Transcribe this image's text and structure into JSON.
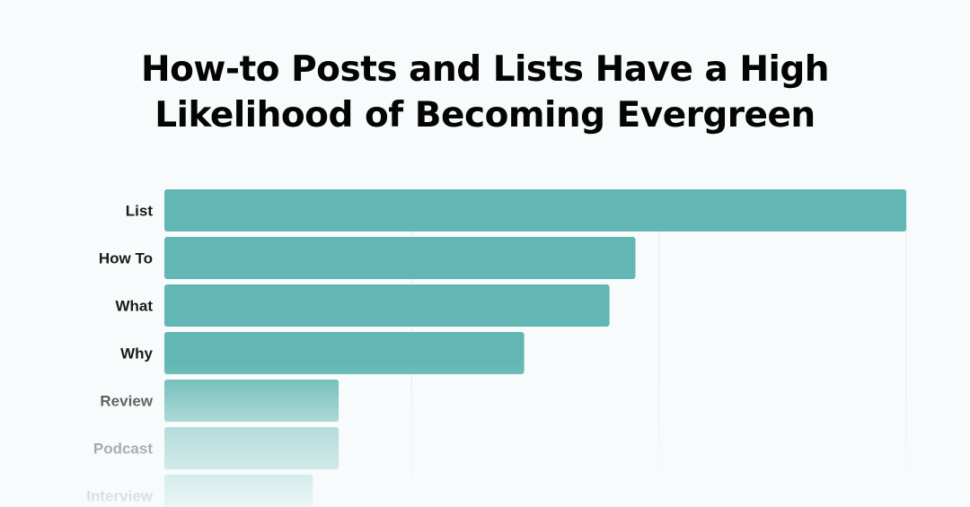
{
  "chart_data": {
    "type": "bar",
    "orientation": "horizontal",
    "title_lines": [
      "How-to Posts and Lists Have a High",
      "Likelihood of Becoming Evergreen"
    ],
    "categories": [
      "List",
      "How To",
      "What",
      "Why",
      "Review",
      "Podcast",
      "Interview"
    ],
    "values": [
      100,
      63.5,
      60,
      48.5,
      23.5,
      23.5,
      20
    ],
    "xlim": [
      0,
      100
    ],
    "grid": true,
    "legend": "none",
    "bar_color": "#62b7b4",
    "text_color": "#1a1a1a",
    "gridline_color": "#e3e8e8"
  }
}
